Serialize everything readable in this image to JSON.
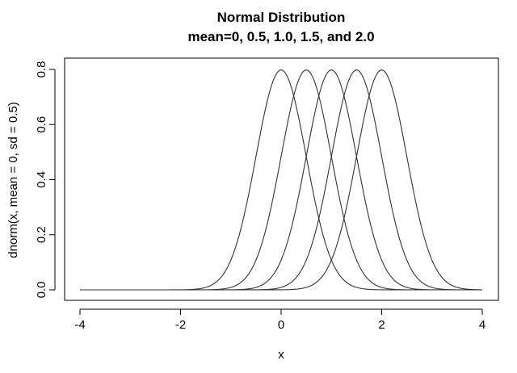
{
  "chart_data": {
    "type": "line",
    "title": "Normal Distribution",
    "subtitle": "mean=0, 0.5, 1.0, 1.5, and 2.0",
    "xlabel": "x",
    "ylabel": "dnorm(x, mean = 0, sd = 0.5)",
    "xlim": [
      -4,
      4
    ],
    "ylim": [
      0,
      0.8
    ],
    "xticks": [
      -4,
      -2,
      0,
      2,
      4
    ],
    "yticks": [
      0.0,
      0.2,
      0.4,
      0.6,
      0.8
    ],
    "xtick_labels": [
      "-4",
      "-2",
      "0",
      "2",
      "4"
    ],
    "ytick_labels": [
      "0.0",
      "0.2",
      "0.4",
      "0.6",
      "0.8"
    ],
    "sd": 0.5,
    "series": [
      {
        "mean": 0.0
      },
      {
        "mean": 0.5
      },
      {
        "mean": 1.0
      },
      {
        "mean": 1.5
      },
      {
        "mean": 2.0
      }
    ],
    "line_color": "#333333",
    "grid": false,
    "legend": "none"
  }
}
